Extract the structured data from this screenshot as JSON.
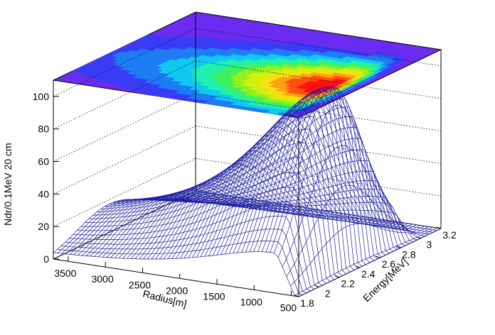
{
  "chart_data": {
    "type": "surface",
    "title": "",
    "zlabel": "Ndr/0.1MeV 20 cm",
    "xlabel": "Radius[m]",
    "ylabel": "Energy[MeV]",
    "x_range": [
      400,
      3700
    ],
    "y_range": [
      1.8,
      3.2
    ],
    "z_range": [
      0,
      110
    ],
    "x_ticks": [
      "500",
      "1000",
      "1500",
      "2000",
      "2500",
      "3000",
      "3500"
    ],
    "y_ticks": [
      "1.8",
      "2",
      "2.2",
      "2.4",
      "2.6",
      "2.8",
      "3",
      "3.2"
    ],
    "z_ticks": [
      "0",
      "20",
      "40",
      "60",
      "80",
      "100"
    ],
    "peak": {
      "radius": 700,
      "energy": 2.35,
      "value": 110
    },
    "surface_color": "#1f1fa0",
    "contour_palette": [
      "#6a2cf0",
      "#3a3cf5",
      "#1e7cf5",
      "#10c8f0",
      "#20f0b0",
      "#40f060",
      "#90f020",
      "#d0f010",
      "#f8e010",
      "#ffa010",
      "#ff5010",
      "#ff1010"
    ],
    "grid": true
  }
}
